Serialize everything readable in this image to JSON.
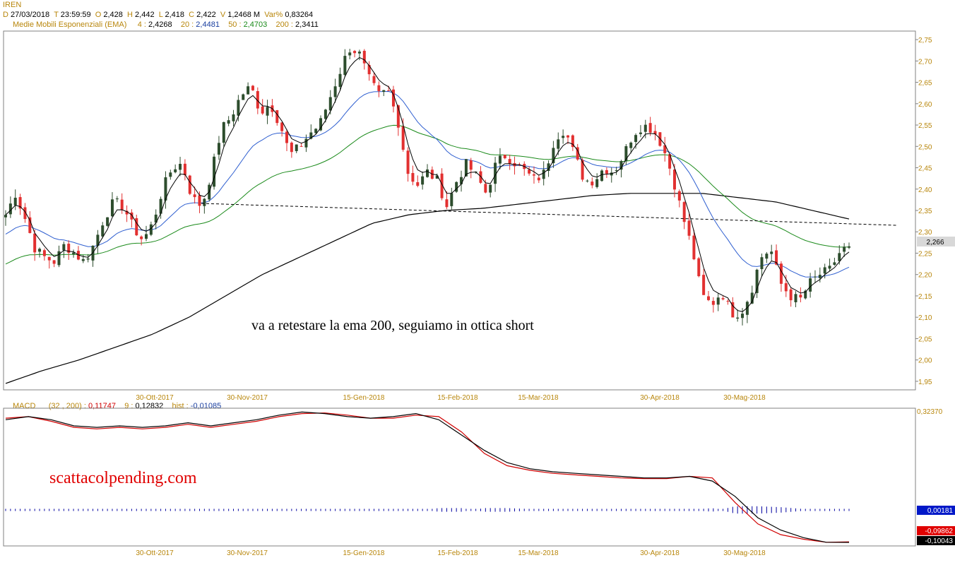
{
  "header": {
    "symbol": "IREN",
    "date_key": "D",
    "date": "27/03/2018",
    "time_key": "T",
    "time": "23:59:59",
    "open_key": "O",
    "open": "2,428",
    "high_key": "H",
    "high": "2,442",
    "low_key": "L",
    "low": "2,418",
    "close_key": "C",
    "close": "2,422",
    "volume_key": "V",
    "volume": "1,2468 M",
    "var_key": "Var%",
    "var": "0,83264"
  },
  "ema_legend": {
    "title": "Medie Mobili Esponenziali (EMA)",
    "p4": "4 :",
    "v4": "2,4268",
    "p20": "20 :",
    "v20": "2,4481",
    "p50": "50 :",
    "v50": "2,4703",
    "p200": "200 :",
    "v200": "2,3411"
  },
  "macd_legend": {
    "title": "MACD",
    "params": "(32 , 200) :",
    "macd": "0,11747",
    "sig_key": "9 :",
    "signal": "0,12832",
    "hist_key": "hist :",
    "hist": "-0,01085"
  },
  "annotation": "va a retestare la ema 200, seguiamo in ottica short",
  "watermark": "scattacolpending.com",
  "price_badge": "2,266",
  "macd_axis_top": "0,32370",
  "macd_badges": {
    "hist": "0,00181",
    "signal": "-0,09862",
    "macd": "-0,10043"
  },
  "colors": {
    "ema4": "#000000",
    "ema20": "#2f5fd0",
    "ema50": "#1a8a1a",
    "ema200": "#000000",
    "bull": "#2d4d2d",
    "bear": "#e23030",
    "macd_line": "#000000",
    "signal_line": "#d00000",
    "hist": "#0000a0",
    "axis_text": "#b8860b"
  },
  "chart_data": [
    {
      "type": "candlestick",
      "title": "IREN",
      "ylim": [
        1.93,
        2.77
      ],
      "y_ticks": [
        "1,95",
        "2,00",
        "2,05",
        "2,10",
        "2,15",
        "2,20",
        "2,25",
        "2,30",
        "2,35",
        "2,40",
        "2,45",
        "2,50",
        "2,55",
        "2,60",
        "2,65",
        "2,70",
        "2,75"
      ],
      "x_ticks": [
        "30-Ott-2017",
        "30-Nov-2017",
        "15-Gen-2018",
        "15-Feb-2018",
        "15-Mar-2018",
        "30-Apr-2018",
        "30-Mag-2018"
      ],
      "last_price": 2.266,
      "close_path": [
        2.34,
        2.39,
        2.33,
        2.26,
        2.24,
        2.23,
        2.27,
        2.25,
        2.23,
        2.27,
        2.33,
        2.37,
        2.36,
        2.31,
        2.28,
        2.32,
        2.4,
        2.45,
        2.46,
        2.38,
        2.36,
        2.44,
        2.54,
        2.57,
        2.62,
        2.64,
        2.58,
        2.6,
        2.55,
        2.48,
        2.5,
        2.53,
        2.55,
        2.61,
        2.67,
        2.73,
        2.72,
        2.66,
        2.62,
        2.63,
        2.56,
        2.44,
        2.41,
        2.44,
        2.42,
        2.36,
        2.42,
        2.46,
        2.43,
        2.39,
        2.46,
        2.48,
        2.46,
        2.44,
        2.42,
        2.44,
        2.52,
        2.54,
        2.48,
        2.42,
        2.42,
        2.45,
        2.44,
        2.48,
        2.53,
        2.55,
        2.54,
        2.5,
        2.43,
        2.34,
        2.26,
        2.15,
        2.13,
        2.16,
        2.11,
        2.11,
        2.16,
        2.24,
        2.26,
        2.18,
        2.15,
        2.14,
        2.18,
        2.2,
        2.21,
        2.25,
        2.27
      ],
      "series": [
        {
          "name": "4",
          "last_value": 2.4268
        },
        {
          "name": "20",
          "last_value": 2.4481
        },
        {
          "name": "50",
          "last_value": 2.4703
        },
        {
          "name": "200",
          "last_value": 2.3411
        }
      ],
      "ema200_path": [
        1.945,
        1.975,
        2.0,
        2.03,
        2.06,
        2.1,
        2.15,
        2.2,
        2.24,
        2.28,
        2.32,
        2.34,
        2.35,
        2.355,
        2.365,
        2.375,
        2.385,
        2.39,
        2.39,
        2.39,
        2.38,
        2.37,
        2.35,
        2.33
      ],
      "annotation": "va a retestare la ema 200, seguiamo in ottica short"
    },
    {
      "type": "line",
      "title": "MACD",
      "ylim": [
        -0.105,
        0.3237
      ],
      "series": [
        {
          "name": "MACD",
          "values": [
            0.3,
            0.31,
            0.3,
            0.28,
            0.275,
            0.28,
            0.275,
            0.28,
            0.29,
            0.28,
            0.29,
            0.3,
            0.315,
            0.325,
            0.32,
            0.31,
            0.305,
            0.31,
            0.32,
            0.3,
            0.25,
            0.2,
            0.16,
            0.14,
            0.13,
            0.125,
            0.12,
            0.115,
            0.11,
            0.11,
            0.115,
            0.1,
            0.05,
            -0.02,
            -0.06,
            -0.085,
            -0.1,
            -0.10043
          ],
          "last_value": -0.10043
        },
        {
          "name": "9",
          "values": [
            0.305,
            0.31,
            0.295,
            0.275,
            0.27,
            0.275,
            0.27,
            0.275,
            0.285,
            0.275,
            0.285,
            0.295,
            0.31,
            0.32,
            0.322,
            0.315,
            0.305,
            0.305,
            0.315,
            0.31,
            0.26,
            0.19,
            0.15,
            0.135,
            0.125,
            0.12,
            0.115,
            0.11,
            0.108,
            0.108,
            0.115,
            0.11,
            0.03,
            -0.04,
            -0.075,
            -0.09,
            -0.1,
            -0.09862
          ],
          "last_value": -0.09862
        },
        {
          "name": "hist",
          "last_value": 0.00181
        }
      ]
    }
  ]
}
